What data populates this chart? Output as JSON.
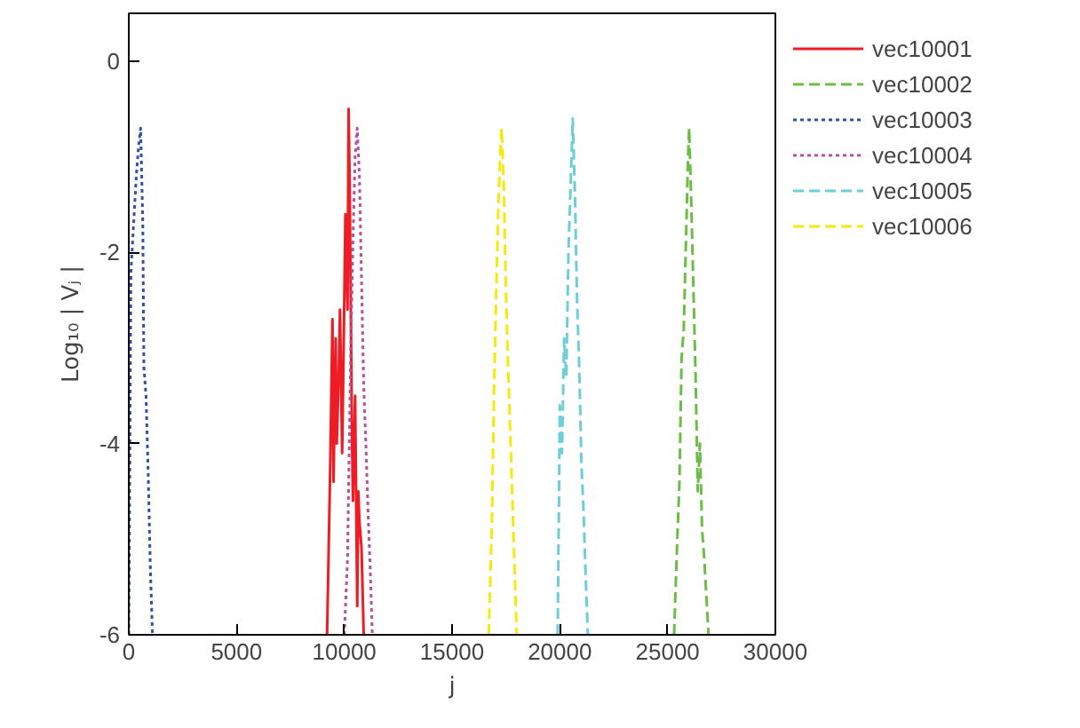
{
  "chart_data": {
    "type": "line",
    "xlabel": "j",
    "ylabel": "Log₁₀ | Vⱼ |",
    "xlim": [
      0,
      30000
    ],
    "ylim": [
      -6,
      0.5
    ],
    "xticks": [
      0,
      5000,
      10000,
      15000,
      20000,
      25000,
      30000
    ],
    "yticks": [
      0,
      -2,
      -4,
      -6
    ],
    "grid": false,
    "legend": "top right",
    "series": [
      {
        "name": "vec10001",
        "color": "#ee1c24",
        "line_style": "solid",
        "x": [
          9200,
          9350,
          9450,
          9500,
          9600,
          9650,
          9750,
          9800,
          9900,
          10000,
          10050,
          10150,
          10200,
          10250,
          10350,
          10400,
          10500,
          10600,
          10650,
          10700,
          10800,
          10900
        ],
        "values": [
          -6,
          -4.2,
          -2.7,
          -4.4,
          -2.9,
          -4.0,
          -3.2,
          -2.6,
          -4.1,
          -2.5,
          -1.6,
          -2.6,
          -0.5,
          -1.3,
          -3.8,
          -4.6,
          -3.5,
          -5.7,
          -4.5,
          -4.8,
          -5.1,
          -6
        ]
      },
      {
        "name": "vec10002",
        "color": "#6cbd45",
        "line_style": "dashed",
        "x": [
          25300,
          25450,
          25550,
          25650,
          25750,
          25850,
          25950,
          26000,
          26100,
          26200,
          26300,
          26400,
          26500,
          26600,
          26700,
          26800,
          26900
        ],
        "values": [
          -6,
          -5.0,
          -4.4,
          -3.1,
          -2.8,
          -1.9,
          -1.0,
          -0.7,
          -1.5,
          -2.4,
          -3.3,
          -4.5,
          -4.0,
          -4.9,
          -5.2,
          -5.6,
          -6
        ]
      },
      {
        "name": "vec10003",
        "color": "#2f52a4",
        "line_style": "dotted",
        "x": [
          0,
          100,
          150,
          250,
          350,
          450,
          550,
          650,
          700,
          800,
          900,
          1000,
          1100
        ],
        "values": [
          -6,
          -2.2,
          -2.0,
          -1.6,
          -1.2,
          -0.9,
          -0.7,
          -1.7,
          -3.2,
          -3.5,
          -4.3,
          -5.3,
          -6
        ]
      },
      {
        "name": "vec10004",
        "color": "#b84fa0",
        "line_style": "dotted",
        "x": [
          10000,
          10150,
          10300,
          10400,
          10500,
          10600,
          10700,
          10800,
          10900,
          11000,
          11100,
          11200,
          11300
        ],
        "values": [
          -6,
          -5.2,
          -3.0,
          -1.9,
          -1.0,
          -0.7,
          -1.2,
          -2.3,
          -3.4,
          -4.0,
          -4.7,
          -5.3,
          -6
        ]
      },
      {
        "name": "vec10005",
        "color": "#6dcdd9",
        "line_style": "dashed",
        "x": [
          19900,
          20000,
          20100,
          20200,
          20300,
          20400,
          20500,
          20600,
          20700,
          20800,
          20900,
          21000,
          21100,
          21200,
          21300
        ],
        "values": [
          -6,
          -3.6,
          -4.1,
          -2.9,
          -3.3,
          -2.0,
          -1.3,
          -0.6,
          -1.4,
          -2.5,
          -3.2,
          -4.2,
          -4.7,
          -5.4,
          -6
        ]
      },
      {
        "name": "vec10006",
        "color": "#f5ea0f",
        "line_style": "dashed",
        "x": [
          16700,
          16850,
          16950,
          17050,
          17150,
          17250,
          17300,
          17400,
          17500,
          17600,
          17700,
          17800,
          17900,
          18000
        ],
        "values": [
          -6,
          -4.8,
          -3.4,
          -2.4,
          -1.5,
          -0.9,
          -0.7,
          -1.3,
          -2.4,
          -3.2,
          -3.9,
          -4.6,
          -5.3,
          -6
        ]
      }
    ]
  }
}
